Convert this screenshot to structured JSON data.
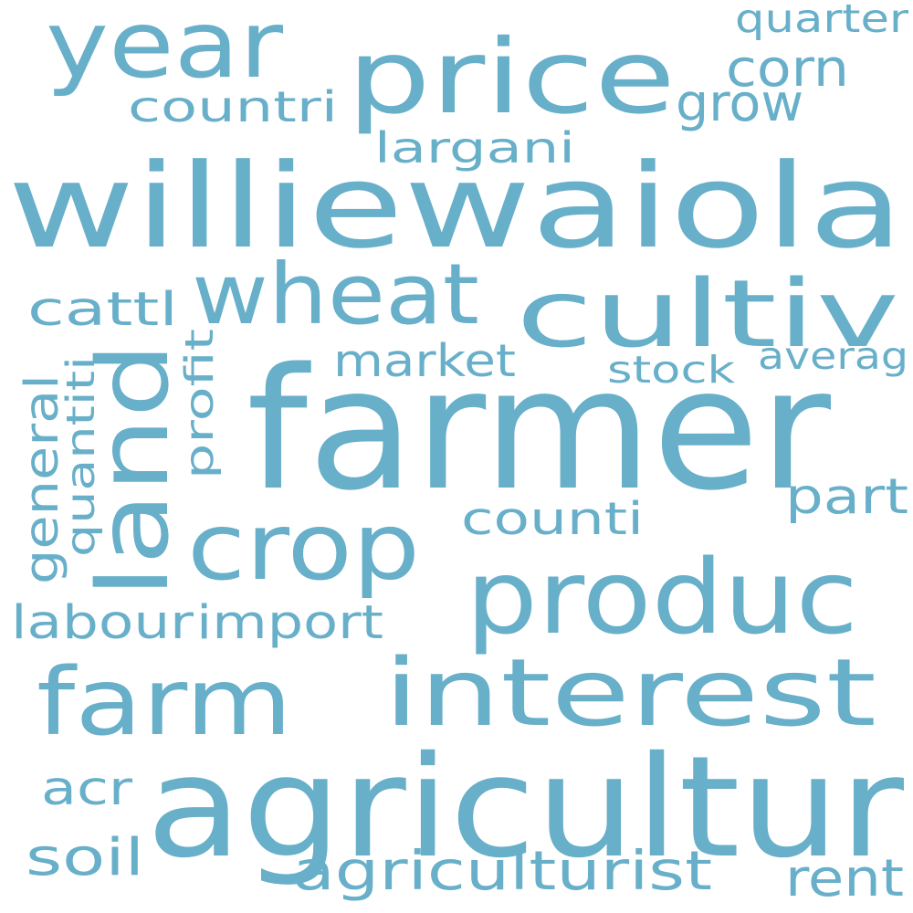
{
  "color": "#68afc9",
  "words": [
    {
      "id": "willie",
      "text": "williewaiola"
    },
    {
      "id": "farmer",
      "text": "farmer"
    },
    {
      "id": "price",
      "text": "price"
    },
    {
      "id": "year",
      "text": "year"
    },
    {
      "id": "agricultur",
      "text": "agricultur"
    },
    {
      "id": "interest",
      "text": "interest"
    },
    {
      "id": "produc",
      "text": "produc"
    },
    {
      "id": "farm",
      "text": "farm"
    },
    {
      "id": "cultiv",
      "text": "cultiv"
    },
    {
      "id": "wheat",
      "text": "wheat"
    },
    {
      "id": "land",
      "text": "land"
    },
    {
      "id": "crop",
      "text": "crop"
    },
    {
      "id": "agriculturist",
      "text": "agriculturist"
    },
    {
      "id": "countri",
      "text": "countri"
    },
    {
      "id": "corn",
      "text": "corn"
    },
    {
      "id": "grow",
      "text": "grow"
    },
    {
      "id": "quarter",
      "text": "quarter"
    },
    {
      "id": "largani",
      "text": "largani"
    },
    {
      "id": "cattl",
      "text": "cattl"
    },
    {
      "id": "market",
      "text": "market"
    },
    {
      "id": "stock",
      "text": "stock"
    },
    {
      "id": "averag",
      "text": "averag"
    },
    {
      "id": "part",
      "text": "part"
    },
    {
      "id": "counti",
      "text": "counti"
    },
    {
      "id": "labour",
      "text": "labour"
    },
    {
      "id": "import",
      "text": "import"
    },
    {
      "id": "acr",
      "text": "acr"
    },
    {
      "id": "soil",
      "text": "soil"
    },
    {
      "id": "rent",
      "text": "rent"
    },
    {
      "id": "general",
      "text": "general"
    },
    {
      "id": "quantiti",
      "text": "quantiti"
    },
    {
      "id": "profit",
      "text": "profit"
    }
  ]
}
